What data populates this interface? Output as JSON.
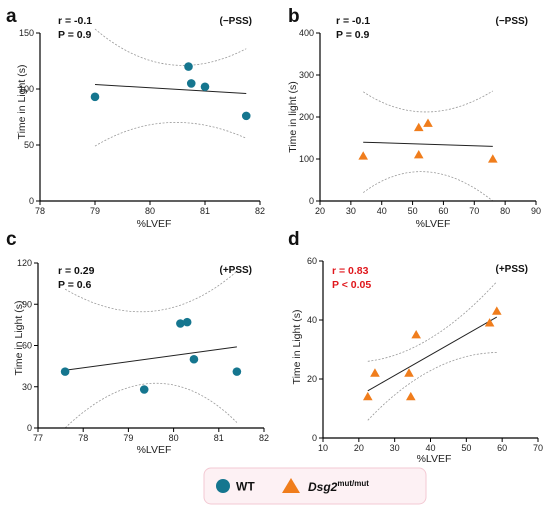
{
  "colors": {
    "wt": "#15768f",
    "mut": "#f07d1c",
    "significant": "#e0161b",
    "text": "#111111",
    "legend_bg": "#fdf1f4",
    "legend_border": "#f3c9d3"
  },
  "legend": {
    "wt_label": "WT",
    "mut_label_main": "Dsg2",
    "mut_label_sup": "mut/mut",
    "wt_icon": "circle-icon",
    "mut_icon": "triangle-icon"
  },
  "chart_data": [
    {
      "panel": "a",
      "type": "scatter",
      "marker": "circle",
      "color": "#15768f",
      "condition": "(−PSS)",
      "stats": {
        "r": "r = -0.1",
        "p": "P = 0.9",
        "significant": false
      },
      "xlabel": "%LVEF",
      "ylabel": "Time in Light (s)",
      "xlim": [
        78,
        82
      ],
      "ylim": [
        0,
        150
      ],
      "xticks": [
        78,
        79,
        80,
        81,
        82
      ],
      "yticks": [
        0,
        50,
        100,
        150
      ],
      "points": [
        [
          79,
          93
        ],
        [
          80.7,
          120
        ],
        [
          80.75,
          105
        ],
        [
          81,
          102
        ],
        [
          81.75,
          76
        ]
      ],
      "fit": [
        [
          79,
          104
        ],
        [
          81.75,
          96
        ]
      ],
      "ci_upper": [
        [
          79,
          158
        ],
        [
          80.3,
          123
        ],
        [
          81.75,
          136
        ]
      ],
      "ci_lower": [
        [
          79,
          49
        ],
        [
          80.3,
          70
        ],
        [
          81.75,
          56
        ]
      ]
    },
    {
      "panel": "b",
      "type": "scatter",
      "marker": "triangle",
      "color": "#f07d1c",
      "condition": "(−PSS)",
      "stats": {
        "r": "r = -0.1",
        "p": "P = 0.9",
        "significant": false
      },
      "xlabel": "%LVEF",
      "ylabel": "Time in light (s)",
      "xlim": [
        20,
        90
      ],
      "ylim": [
        0,
        400
      ],
      "xticks": [
        20,
        30,
        40,
        50,
        60,
        70,
        80,
        90
      ],
      "yticks": [
        0,
        100,
        200,
        300,
        400
      ],
      "points": [
        [
          34,
          107
        ],
        [
          52,
          110
        ],
        [
          52,
          175
        ],
        [
          55,
          185
        ],
        [
          76,
          100
        ]
      ],
      "fit": [
        [
          34,
          140
        ],
        [
          76,
          130
        ]
      ],
      "ci_upper": [
        [
          34,
          260
        ],
        [
          54,
          212
        ],
        [
          76,
          262
        ]
      ],
      "ci_lower": [
        [
          34,
          20
        ],
        [
          54,
          69
        ],
        [
          76,
          -2
        ]
      ]
    },
    {
      "panel": "c",
      "type": "scatter",
      "marker": "circle",
      "color": "#15768f",
      "condition": "(+PSS)",
      "stats": {
        "r": "r = 0.29",
        "p": "P = 0.6",
        "significant": false
      },
      "xlabel": "%LVEF",
      "ylabel": "Time in Light (s)",
      "xlim": [
        77,
        82
      ],
      "ylim": [
        0,
        120
      ],
      "xticks": [
        77,
        78,
        79,
        80,
        81,
        82
      ],
      "yticks": [
        0,
        30,
        60,
        90,
        120
      ],
      "points": [
        [
          77.6,
          41
        ],
        [
          79.35,
          28
        ],
        [
          80.15,
          76
        ],
        [
          80.3,
          77
        ],
        [
          80.45,
          50
        ],
        [
          81.4,
          41
        ]
      ],
      "fit": [
        [
          77.6,
          42
        ],
        [
          81.4,
          59
        ]
      ],
      "ci_upper": [
        [
          77.6,
          101
        ],
        [
          79.6,
          85
        ],
        [
          81.4,
          114
        ]
      ],
      "ci_lower": [
        [
          77.6,
          -18
        ],
        [
          79.6,
          28
        ],
        [
          81.4,
          4
        ]
      ]
    },
    {
      "panel": "d",
      "type": "scatter",
      "marker": "triangle",
      "color": "#f07d1c",
      "condition": "(+PSS)",
      "stats": {
        "r": "r = 0.83",
        "p": "P < 0.05",
        "significant": true
      },
      "xlabel": "%LVEF",
      "ylabel": "Time in Light (s)",
      "xlim": [
        10,
        70
      ],
      "ylim": [
        0,
        60
      ],
      "xticks": [
        10,
        20,
        30,
        40,
        50,
        60,
        70
      ],
      "yticks": [
        0,
        20,
        40,
        60
      ],
      "points": [
        [
          22.5,
          14
        ],
        [
          24.5,
          22
        ],
        [
          34,
          22
        ],
        [
          34.5,
          14
        ],
        [
          36,
          35
        ],
        [
          56.5,
          39
        ],
        [
          58.5,
          43
        ]
      ],
      "fit": [
        [
          22.5,
          16
        ],
        [
          58.5,
          41
        ]
      ],
      "ci_upper": [
        [
          22.5,
          26
        ],
        [
          40,
          34
        ],
        [
          58.5,
          53
        ]
      ],
      "ci_lower": [
        [
          22.5,
          6
        ],
        [
          40,
          23
        ],
        [
          58.5,
          29
        ]
      ]
    }
  ]
}
